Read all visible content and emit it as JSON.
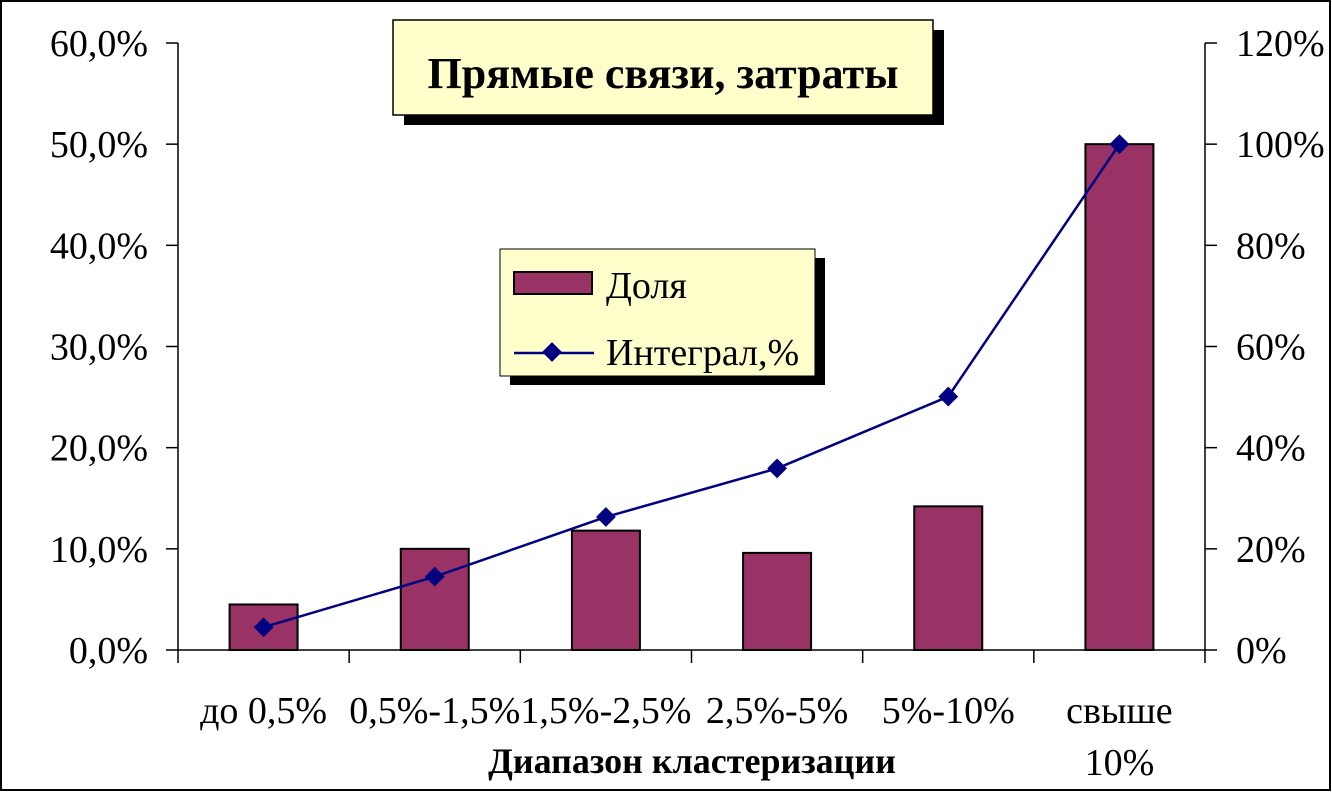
{
  "chart_data": {
    "type": "bar",
    "title": "Прямые связи, затраты",
    "xlabel": "Диапазон кластеризации",
    "ylabel": "",
    "y2label": "",
    "categories": [
      "до 0,5%",
      "0,5%-1,5%",
      "1,5%-2,5%",
      "2,5%-5%",
      "5%-10%",
      "свыше 10%"
    ],
    "category_lines": [
      [
        "до 0,5%"
      ],
      [
        "0,5%-1,5%"
      ],
      [
        "1,5%-2,5%"
      ],
      [
        "2,5%-5%"
      ],
      [
        "5%-10%"
      ],
      [
        "свыше",
        "10%"
      ]
    ],
    "series": [
      {
        "name": "Доля",
        "type": "bar",
        "axis": "left",
        "values": [
          4.5,
          10.0,
          11.8,
          9.6,
          14.2,
          50.0
        ],
        "color": "#993366"
      },
      {
        "name": "Интеграл,%",
        "type": "line",
        "axis": "right",
        "values": [
          4.5,
          14.5,
          26.3,
          35.9,
          50.1,
          100.0
        ],
        "color": "#000080"
      }
    ],
    "ylim": [
      0,
      60
    ],
    "y2lim": [
      0,
      120
    ],
    "yticks": [
      "0,0%",
      "10,0%",
      "20,0%",
      "30,0%",
      "40,0%",
      "50,0%",
      "60,0%"
    ],
    "y2ticks": [
      "0%",
      "20%",
      "40%",
      "60%",
      "80%",
      "100%",
      "120%"
    ],
    "grid": false,
    "legend_position": "center"
  },
  "colors": {
    "title_box": "#ffffcc",
    "legend_box": "#ffffcc",
    "shadow": "#000000"
  }
}
